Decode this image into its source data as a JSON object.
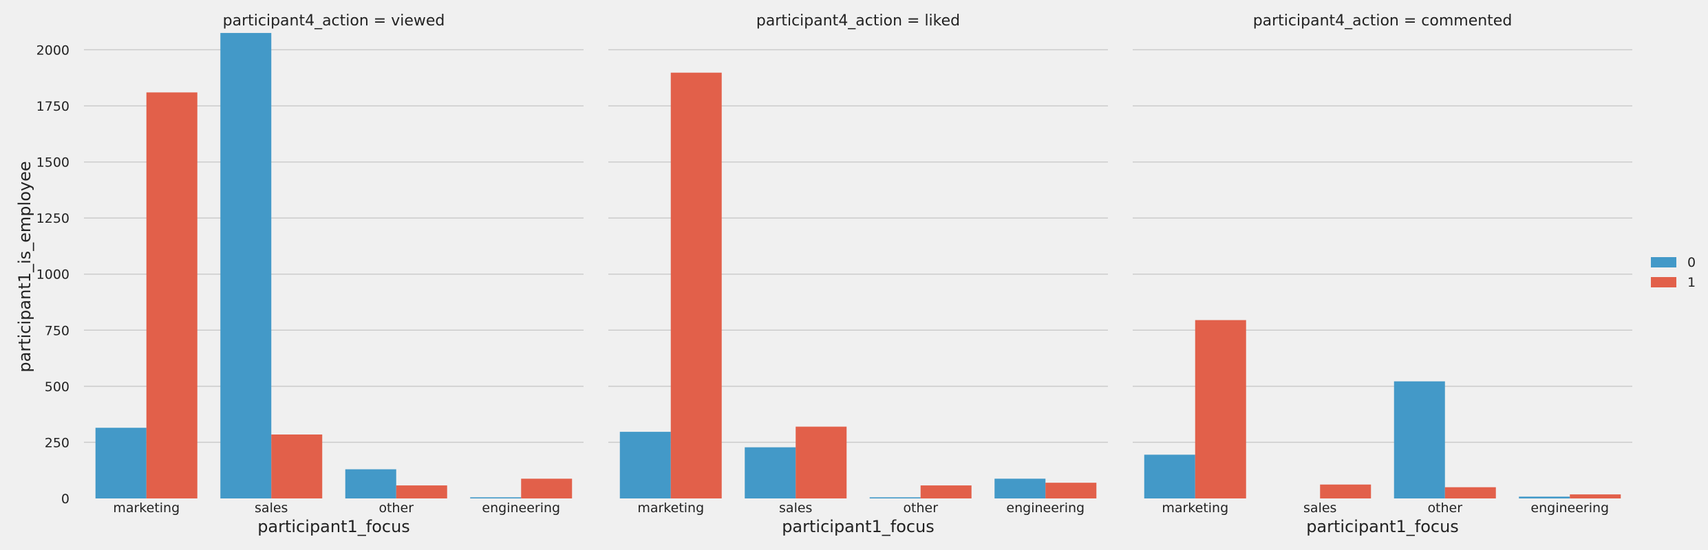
{
  "colors": {
    "hue_0": "#4399c8",
    "hue_1": "#e2604a",
    "grid": "#cbcbcb",
    "background": "#f0f0f0"
  },
  "chart_data": [
    {
      "type": "bar",
      "title": "participant4_action = viewed",
      "xlabel": "participant1_focus",
      "ylabel": "participant1_is_employee",
      "categories": [
        "marketing",
        "sales",
        "other",
        "engineering"
      ],
      "series": [
        {
          "name": "0",
          "values": [
            315,
            2075,
            130,
            5
          ]
        },
        {
          "name": "1",
          "values": [
            1810,
            285,
            58,
            88
          ]
        }
      ],
      "ylim": [
        0,
        2130
      ],
      "yticks": [
        0,
        250,
        500,
        750,
        1000,
        1250,
        1500,
        1750,
        2000
      ],
      "grid": "horizontal"
    },
    {
      "type": "bar",
      "title": "participant4_action = liked",
      "xlabel": "participant1_focus",
      "categories": [
        "marketing",
        "sales",
        "other",
        "engineering"
      ],
      "series": [
        {
          "name": "0",
          "values": [
            297,
            228,
            5,
            88
          ]
        },
        {
          "name": "1",
          "values": [
            1898,
            320,
            58,
            70
          ]
        }
      ],
      "ylim": [
        0,
        2130
      ],
      "grid": "horizontal"
    },
    {
      "type": "bar",
      "title": "participant4_action = commented",
      "xlabel": "participant1_focus",
      "categories": [
        "marketing",
        "sales",
        "other",
        "engineering"
      ],
      "series": [
        {
          "name": "0",
          "values": [
            195,
            0,
            522,
            8
          ]
        },
        {
          "name": "1",
          "values": [
            795,
            62,
            50,
            18
          ]
        }
      ],
      "ylim": [
        0,
        2130
      ],
      "grid": "horizontal"
    }
  ],
  "legend": {
    "placement": "right",
    "entries": [
      "0",
      "1"
    ]
  }
}
